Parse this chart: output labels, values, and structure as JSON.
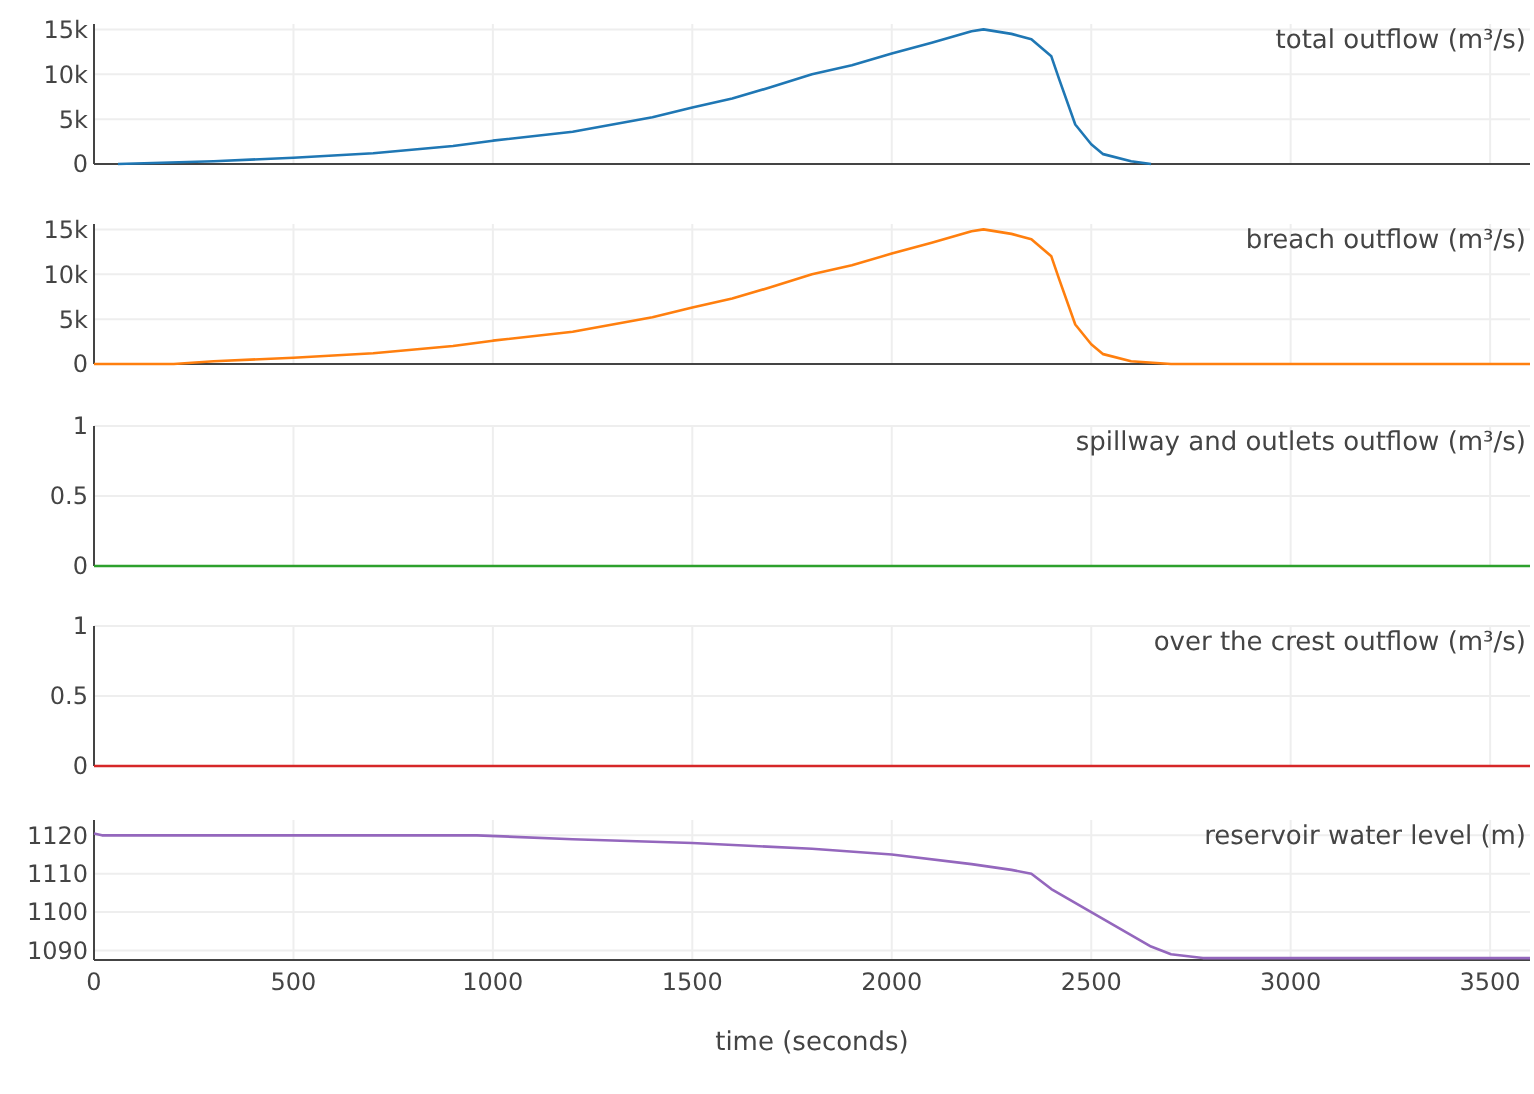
{
  "chart_data": [
    {
      "type": "line",
      "title": "total outflow (m³/s)",
      "xlim": [
        0,
        3600
      ],
      "xticks": [
        0,
        500,
        1000,
        1500,
        2000,
        2500,
        3000,
        3500
      ],
      "ylim": [
        0,
        15600
      ],
      "yticks": [
        0,
        {
          "value": 5000,
          "label": "5k"
        },
        {
          "value": 10000,
          "label": "10k"
        },
        {
          "value": 15000,
          "label": "15k"
        }
      ],
      "grid": true,
      "tick_labels": "y",
      "series": [
        {
          "color": "#1f77b4",
          "x": [
            60,
            300,
            500,
            700,
            900,
            1000,
            1200,
            1400,
            1500,
            1600,
            1700,
            1800,
            1900,
            2000,
            2100,
            2200,
            2230,
            2300,
            2350,
            2400,
            2420,
            2460,
            2500,
            2530,
            2600,
            2650
          ],
          "values": [
            0,
            300,
            700,
            1200,
            2000,
            2600,
            3600,
            5200,
            6300,
            7300,
            8600,
            10000,
            11000,
            12300,
            13500,
            14800,
            15000,
            14500,
            13900,
            12000,
            9400,
            4400,
            2200,
            1100,
            300,
            0
          ]
        }
      ]
    },
    {
      "type": "line",
      "title": "breach outflow (m³/s)",
      "xlim": [
        0,
        3600
      ],
      "xticks": [
        0,
        500,
        1000,
        1500,
        2000,
        2500,
        3000,
        3500
      ],
      "ylim": [
        0,
        15600
      ],
      "yticks": [
        0,
        {
          "value": 5000,
          "label": "5k"
        },
        {
          "value": 10000,
          "label": "10k"
        },
        {
          "value": 15000,
          "label": "15k"
        }
      ],
      "grid": true,
      "tick_labels": "y",
      "series": [
        {
          "color": "#ff7f0e",
          "x": [
            0,
            200,
            300,
            500,
            700,
            900,
            1000,
            1200,
            1400,
            1500,
            1600,
            1700,
            1800,
            1900,
            2000,
            2100,
            2200,
            2230,
            2300,
            2350,
            2400,
            2420,
            2460,
            2500,
            2530,
            2600,
            2700,
            3600
          ],
          "values": [
            0,
            0,
            300,
            700,
            1200,
            2000,
            2600,
            3600,
            5200,
            6300,
            7300,
            8600,
            10000,
            11000,
            12300,
            13500,
            14800,
            15000,
            14500,
            13900,
            12000,
            9400,
            4400,
            2200,
            1100,
            300,
            0,
            0
          ]
        }
      ]
    },
    {
      "type": "line",
      "title": "spillway and outlets outflow (m³/s)",
      "xlim": [
        0,
        3600
      ],
      "xticks": [
        0,
        500,
        1000,
        1500,
        2000,
        2500,
        3000,
        3500
      ],
      "ylim": [
        0,
        1
      ],
      "yticks": [
        0,
        0.5,
        1
      ],
      "grid": true,
      "tick_labels": "y",
      "series": [
        {
          "color": "#2ca02c",
          "x": [
            0,
            3600
          ],
          "values": [
            0,
            0
          ]
        }
      ]
    },
    {
      "type": "line",
      "title": "over the crest outflow (m³/s)",
      "xlim": [
        0,
        3600
      ],
      "xticks": [
        0,
        500,
        1000,
        1500,
        2000,
        2500,
        3000,
        3500
      ],
      "ylim": [
        0,
        1
      ],
      "yticks": [
        0,
        0.5,
        1
      ],
      "grid": true,
      "tick_labels": "y",
      "series": [
        {
          "color": "#d62728",
          "x": [
            0,
            3600
          ],
          "values": [
            0,
            0
          ]
        }
      ]
    },
    {
      "type": "line",
      "title": "reservoir water level (m)",
      "xlabel": "time (seconds)",
      "xlim": [
        0,
        3600
      ],
      "xticks": [
        0,
        500,
        1000,
        1500,
        2000,
        2500,
        3000,
        3500
      ],
      "ylim": [
        1087.5,
        1124
      ],
      "yticks": [
        1090,
        1100,
        1110,
        1120
      ],
      "grid": true,
      "series": [
        {
          "color": "#9467bd",
          "x": [
            0,
            20,
            960,
            1200,
            1500,
            1800,
            2000,
            2200,
            2300,
            2350,
            2400,
            2500,
            2600,
            2650,
            2700,
            2780,
            3600
          ],
          "values": [
            1120.5,
            1120,
            1120,
            1119,
            1118,
            1116.5,
            1115,
            1112.5,
            1111,
            1110,
            1106,
            1100,
            1094,
            1091,
            1089,
            1088,
            1088
          ]
        }
      ]
    }
  ]
}
